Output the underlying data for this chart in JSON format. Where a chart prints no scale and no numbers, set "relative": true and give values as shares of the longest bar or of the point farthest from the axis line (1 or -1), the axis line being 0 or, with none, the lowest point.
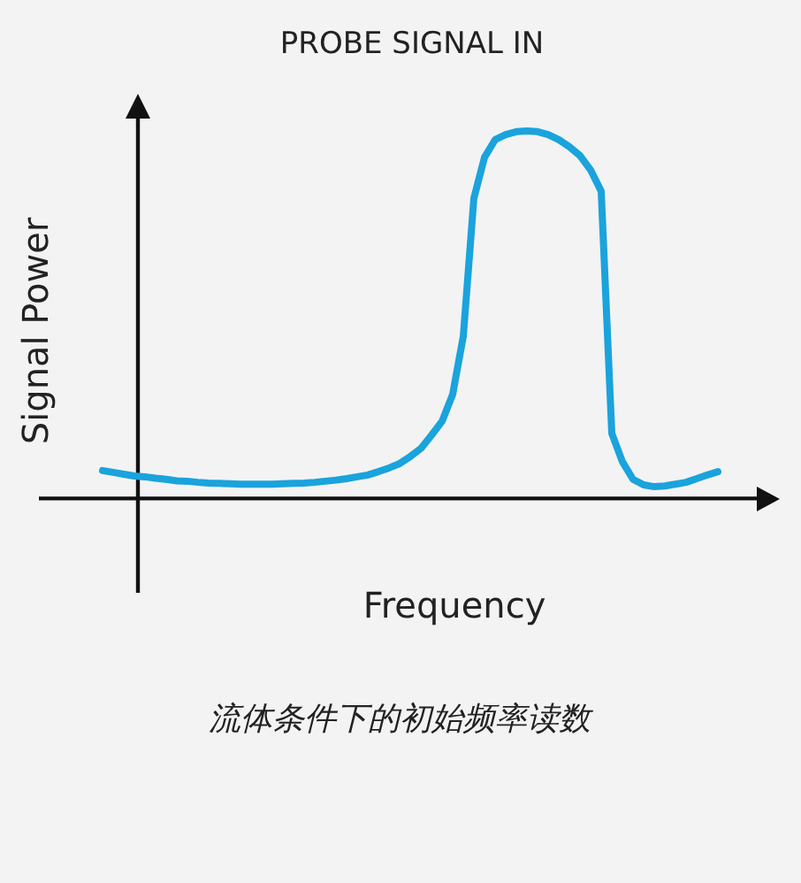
{
  "chart_data": {
    "type": "line",
    "title": "PROBE SIGNAL IN",
    "xlabel": "Frequency",
    "ylabel": "Signal Power",
    "relative": true,
    "color": "#1aa3dc",
    "annotations": [
      "流体条件下的初始频率读数"
    ],
    "categories": [
      null,
      null,
      null,
      null,
      null,
      null,
      null,
      null,
      null,
      null,
      null,
      null,
      null,
      null,
      null,
      null,
      null,
      null,
      null,
      null,
      null,
      null,
      null,
      null,
      null,
      null,
      null,
      null,
      null,
      null,
      null,
      null,
      null,
      null,
      null,
      null,
      null,
      null,
      null,
      null,
      null,
      null,
      null,
      null,
      null,
      null,
      null,
      null,
      null,
      null,
      null,
      null,
      null,
      null,
      null,
      null,
      null,
      null,
      null
    ],
    "values": [
      0.076,
      0.071,
      0.066,
      0.061,
      0.059,
      0.055,
      0.052,
      0.048,
      0.047,
      0.044,
      0.042,
      0.041,
      0.04,
      0.039,
      0.039,
      0.039,
      0.039,
      0.04,
      0.041,
      0.042,
      0.044,
      0.047,
      0.05,
      0.054,
      0.059,
      0.064,
      0.073,
      0.083,
      0.095,
      0.114,
      0.136,
      0.172,
      0.21,
      0.283,
      0.441,
      0.817,
      0.928,
      0.976,
      0.99,
      0.998,
      1.0,
      0.998,
      0.99,
      0.976,
      0.957,
      0.933,
      0.894,
      0.836,
      0.177,
      0.1,
      0.052,
      0.037,
      0.032,
      0.034,
      0.039,
      0.044,
      0.054,
      0.064,
      0.073
    ]
  }
}
